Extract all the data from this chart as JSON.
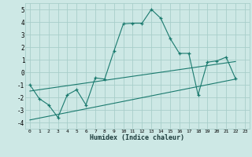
{
  "xlabel": "Humidex (Indice chaleur)",
  "bg_color": "#cde8e5",
  "grid_color": "#a8ceca",
  "line_color": "#1a7a6e",
  "xlim": [
    -0.5,
    23.5
  ],
  "ylim": [
    -4.5,
    5.5
  ],
  "xticks": [
    0,
    1,
    2,
    3,
    4,
    5,
    6,
    7,
    8,
    9,
    10,
    11,
    12,
    13,
    14,
    15,
    16,
    17,
    18,
    19,
    20,
    21,
    22,
    23
  ],
  "yticks": [
    -4,
    -3,
    -2,
    -1,
    0,
    1,
    2,
    3,
    4,
    5
  ],
  "main_x": [
    0,
    1,
    2,
    3,
    4,
    5,
    6,
    7,
    8,
    9,
    10,
    11,
    12,
    13,
    14,
    15,
    16,
    17,
    18,
    19,
    20,
    21,
    22
  ],
  "main_y": [
    -1.0,
    -2.1,
    -2.6,
    -3.6,
    -1.8,
    -1.4,
    -2.6,
    -0.45,
    -0.55,
    1.7,
    3.85,
    3.9,
    3.9,
    5.0,
    4.3,
    2.7,
    1.5,
    1.5,
    -1.8,
    0.8,
    0.9,
    1.2,
    -0.5
  ],
  "line1_x": [
    0,
    22
  ],
  "line1_y": [
    -1.5,
    0.85
  ],
  "line2_x": [
    0,
    22
  ],
  "line2_y": [
    -3.8,
    -0.55
  ]
}
